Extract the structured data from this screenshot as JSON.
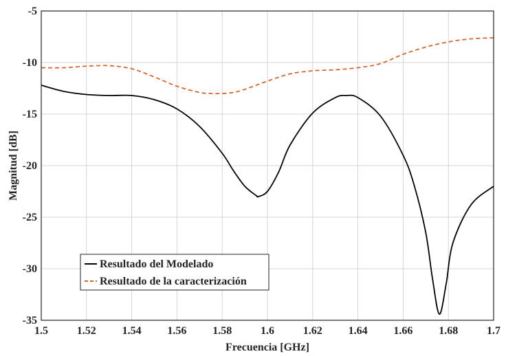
{
  "chart_data": {
    "type": "line",
    "title": "",
    "xlabel": "Frecuencia [GHz]",
    "ylabel": "Magnitud [dB]",
    "xlim": [
      1.5,
      1.7
    ],
    "ylim": [
      -35,
      -5
    ],
    "xticks": [
      1.5,
      1.52,
      1.54,
      1.56,
      1.58,
      1.6,
      1.62,
      1.64,
      1.66,
      1.68,
      1.7
    ],
    "xtick_labels": [
      "1.5",
      "1.52",
      "1.54",
      "1.56",
      "1.58",
      "1.6",
      "1.62",
      "1.64",
      "1.66",
      "1.68",
      "1.7"
    ],
    "yticks": [
      -35,
      -30,
      -25,
      -20,
      -15,
      -10,
      -5
    ],
    "ytick_labels": [
      "-35",
      "-30",
      "-25",
      "-20",
      "-15",
      "-10",
      "-5"
    ],
    "grid": true,
    "legend_position": "bottom-left",
    "series": [
      {
        "name": "Resultado del Modelado",
        "color": "#000000",
        "style": "solid",
        "x": [
          1.5,
          1.51,
          1.52,
          1.53,
          1.54,
          1.55,
          1.56,
          1.57,
          1.58,
          1.585,
          1.59,
          1.595,
          1.596,
          1.6,
          1.605,
          1.61,
          1.62,
          1.63,
          1.635,
          1.64,
          1.65,
          1.66,
          1.665,
          1.67,
          1.673,
          1.676,
          1.679,
          1.682,
          1.69,
          1.7
        ],
        "y": [
          -12.2,
          -12.8,
          -13.1,
          -13.2,
          -13.2,
          -13.6,
          -14.5,
          -16.2,
          -18.8,
          -20.5,
          -22.0,
          -22.9,
          -23.0,
          -22.5,
          -20.6,
          -18.0,
          -14.9,
          -13.4,
          -13.2,
          -13.4,
          -15.2,
          -19.0,
          -22.0,
          -26.5,
          -31.0,
          -34.4,
          -31.5,
          -27.5,
          -23.8,
          -22.0
        ]
      },
      {
        "name": "Resultado de la caracterización",
        "color": "#d9652b",
        "style": "dashed",
        "x": [
          1.5,
          1.51,
          1.52,
          1.53,
          1.54,
          1.55,
          1.56,
          1.57,
          1.575,
          1.58,
          1.585,
          1.59,
          1.6,
          1.61,
          1.62,
          1.63,
          1.64,
          1.65,
          1.66,
          1.67,
          1.68,
          1.69,
          1.7
        ],
        "y": [
          -10.5,
          -10.5,
          -10.35,
          -10.3,
          -10.6,
          -11.4,
          -12.3,
          -12.9,
          -13.0,
          -13.0,
          -12.9,
          -12.6,
          -11.8,
          -11.1,
          -10.8,
          -10.7,
          -10.5,
          -10.1,
          -9.2,
          -8.5,
          -8.0,
          -7.7,
          -7.6
        ]
      }
    ]
  }
}
